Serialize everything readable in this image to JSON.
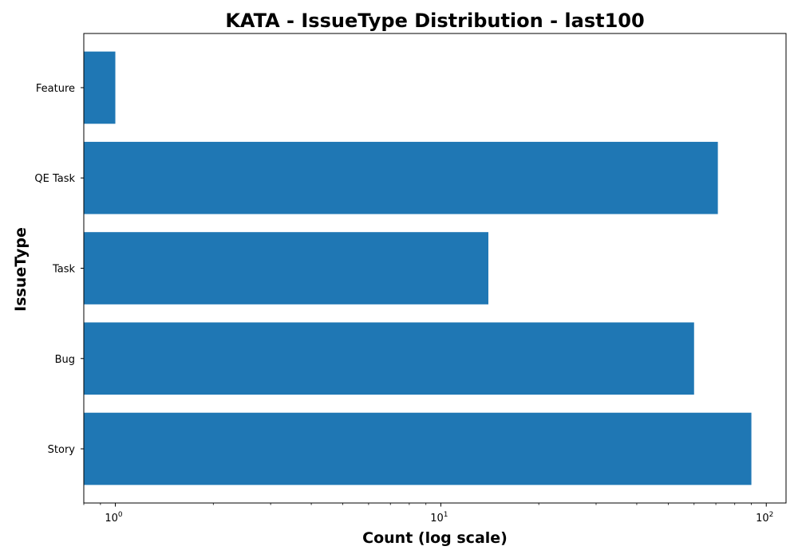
{
  "chart_data": {
    "type": "bar",
    "orientation": "horizontal",
    "title": "KATA - IssueType Distribution - last100",
    "xlabel": "Count (log scale)",
    "ylabel": "IssueType",
    "x_scale": "log",
    "xlim": [
      0.8,
      115
    ],
    "x_ticks": [
      {
        "value": 1,
        "base": "10",
        "exp": "0"
      },
      {
        "value": 10,
        "base": "10",
        "exp": "1"
      },
      {
        "value": 100,
        "base": "10",
        "exp": "2"
      }
    ],
    "categories": [
      "Story",
      "Bug",
      "Task",
      "QE Task",
      "Feature"
    ],
    "values": [
      90,
      60,
      14,
      71,
      1
    ],
    "bar_color": "#1f77b4",
    "grid": false,
    "legend": "none"
  }
}
